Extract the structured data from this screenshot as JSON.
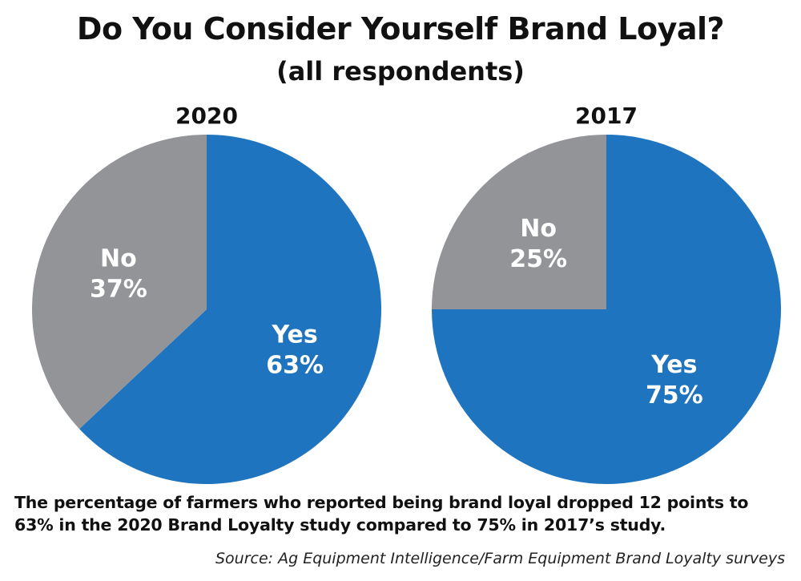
{
  "chart_data": {
    "title": "Do You Consider Yourself Brand Loyal?",
    "subtitle": "(all respondents)",
    "type": "pie",
    "charts": [
      {
        "id": "2020",
        "title": "2020",
        "slices": [
          {
            "name": "Yes",
            "value": 63,
            "label": "63%",
            "color": "#1f74bf"
          },
          {
            "name": "No",
            "value": 37,
            "label": "37%",
            "color": "#929497"
          }
        ]
      },
      {
        "id": "2017",
        "title": "2017",
        "slices": [
          {
            "name": "Yes",
            "value": 75,
            "label": "75%",
            "color": "#1f74bf"
          },
          {
            "name": "No",
            "value": 25,
            "label": "25%",
            "color": "#929497"
          }
        ]
      }
    ]
  },
  "caption": {
    "line1": "The percentage of farmers who reported being brand loyal dropped 12 points to",
    "line2": "63% in the 2020 Brand Loyalty study compared to 75% in 2017’s study."
  },
  "source": "Source: Ag Equipment Intelligence/Farm Equipment Brand Loyalty surveys"
}
